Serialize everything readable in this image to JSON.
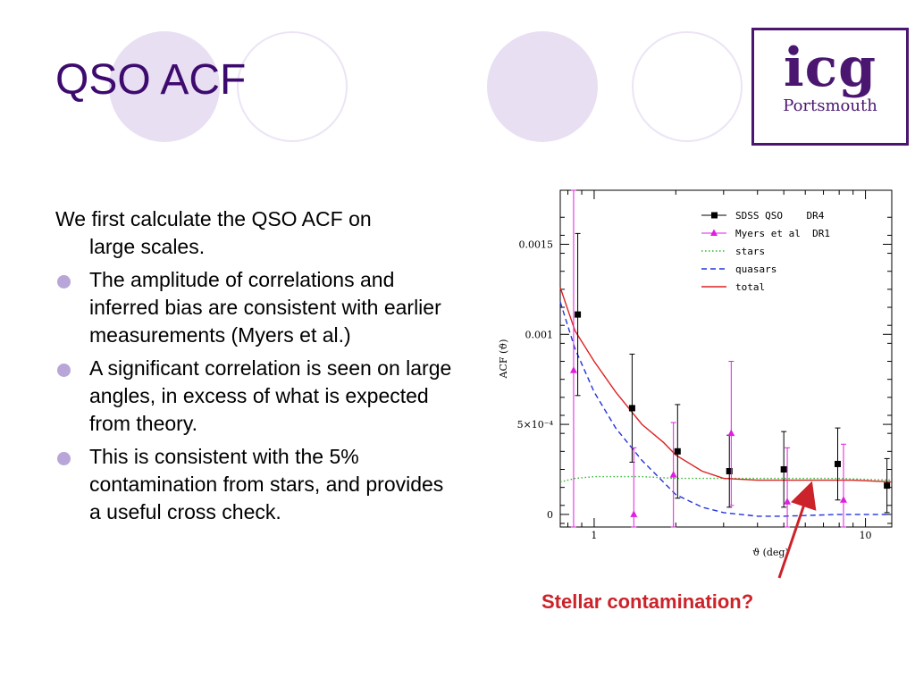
{
  "slide": {
    "title": "QSO ACF",
    "logo": {
      "main": "icg",
      "sub": "Portsmouth"
    },
    "intro": [
      "We first calculate the QSO ACF on",
      "large scales."
    ],
    "bullets": [
      "The amplitude of correlations and inferred bias are consistent with earlier measurements (Myers et al.)",
      "A significant correlation is seen on large angles, in excess of what is expected from theory.",
      "This is consistent with the 5% contamination from stars, and provides a useful cross check."
    ],
    "callout": "Stellar contamination?",
    "colors": {
      "title": "#3d0a6e",
      "decor_fill": "#e8dff3",
      "bullet": "#b8a6d8",
      "callout": "#cc2229"
    }
  },
  "chart_data": {
    "type": "line",
    "x_scale": "log",
    "xlabel": "ϑ (deg)",
    "ylabel": "ACF (ϑ)",
    "xlim": [
      0.75,
      12.5
    ],
    "ylim": [
      -7e-05,
      0.0018
    ],
    "x_ticks": [
      {
        "value": 1,
        "label": "1"
      },
      {
        "value": 10,
        "label": "10"
      }
    ],
    "y_ticks": [
      {
        "value": 0,
        "label": "0"
      },
      {
        "value": 0.0005,
        "label": "5×10⁻⁴"
      },
      {
        "value": 0.001,
        "label": "0.001"
      },
      {
        "value": 0.0015,
        "label": "0.0015"
      }
    ],
    "legend_position": "top-right",
    "series": [
      {
        "name": "SDSS QSO    DR4",
        "kind": "points",
        "marker": "square",
        "color": "#000000",
        "points": [
          {
            "x": 0.87,
            "y": 0.00111,
            "err": 0.00045
          },
          {
            "x": 1.38,
            "y": 0.00059,
            "err": 0.0003
          },
          {
            "x": 2.03,
            "y": 0.00035,
            "err": 0.00026
          },
          {
            "x": 3.15,
            "y": 0.00024,
            "err": 0.0002
          },
          {
            "x": 5.0,
            "y": 0.00025,
            "err": 0.00021
          },
          {
            "x": 7.9,
            "y": 0.00028,
            "err": 0.0002
          },
          {
            "x": 12.0,
            "y": 0.00016,
            "err": 0.00015
          }
        ]
      },
      {
        "name": "Myers et al  DR1",
        "kind": "points",
        "marker": "triangle",
        "color": "#e01ee0",
        "points": [
          {
            "x": 0.84,
            "y": 0.0008,
            "err": 0.0012
          },
          {
            "x": 1.4,
            "y": 0.0,
            "err": 0.00037
          },
          {
            "x": 1.96,
            "y": 0.00022,
            "err": 0.00029
          },
          {
            "x": 3.2,
            "y": 0.00045,
            "err": 0.0004
          },
          {
            "x": 5.15,
            "y": 7e-05,
            "err": 0.0003
          },
          {
            "x": 8.3,
            "y": 8e-05,
            "err": 0.00031
          }
        ]
      },
      {
        "name": "stars",
        "kind": "line",
        "style": "dotted",
        "color": "#2fb52f",
        "x": [
          0.75,
          0.85,
          1.0,
          1.5,
          2.0,
          3.0,
          5.0,
          8.0,
          12.5
        ],
        "y": [
          0.00018,
          0.0002,
          0.00021,
          0.00021,
          0.0002,
          0.0002,
          0.0002,
          0.0002,
          0.00019
        ]
      },
      {
        "name": "quasars",
        "kind": "line",
        "style": "dashed",
        "color": "#2233dd",
        "x": [
          0.75,
          0.85,
          1.0,
          1.2,
          1.5,
          2.0,
          2.5,
          3.0,
          4.0,
          5.0,
          8.0,
          12.5
        ],
        "y": [
          0.00118,
          0.00092,
          0.00068,
          0.00048,
          0.0003,
          0.00011,
          4e-05,
          1e-05,
          -1e-05,
          -1e-05,
          0.0,
          0.0
        ]
      },
      {
        "name": "total",
        "kind": "line",
        "style": "solid",
        "color": "#dd2222",
        "x": [
          0.75,
          0.85,
          1.0,
          1.2,
          1.5,
          1.8,
          2.0,
          2.5,
          3.0,
          4.0,
          6.0,
          9.0,
          12.5
        ],
        "y": [
          0.00126,
          0.00102,
          0.00085,
          0.00068,
          0.0005,
          0.0004,
          0.00033,
          0.00024,
          0.0002,
          0.00019,
          0.00019,
          0.00019,
          0.00018
        ]
      }
    ],
    "annotation": "Stellar contamination?"
  }
}
